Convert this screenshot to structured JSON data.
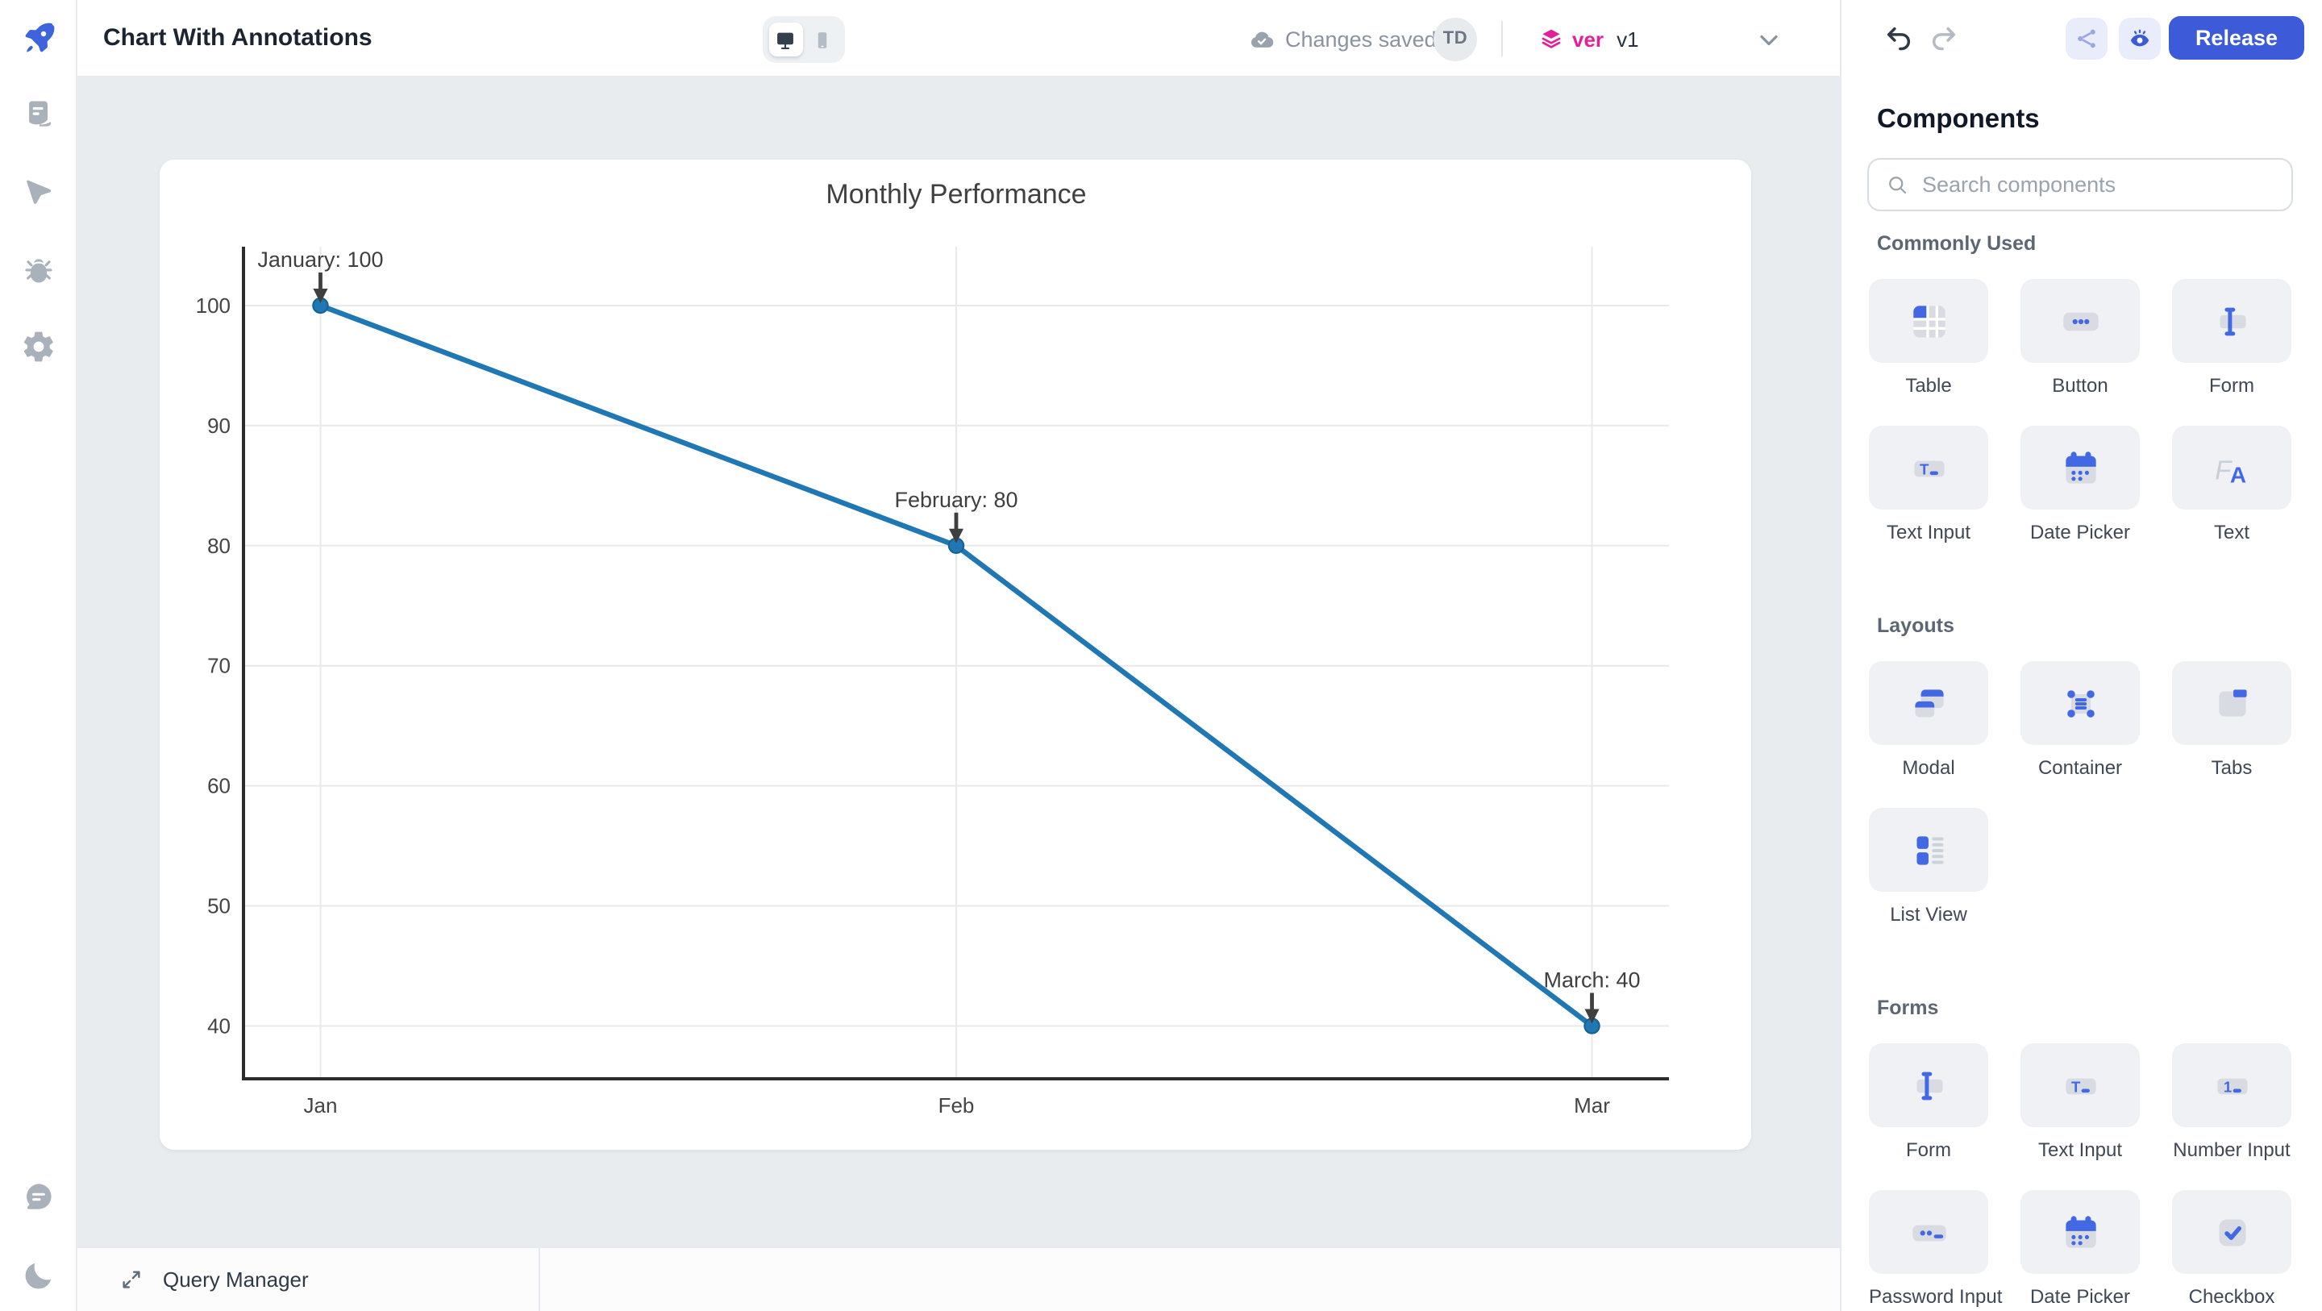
{
  "header": {
    "title": "Chart With Annotations",
    "status": "Changes saved",
    "avatar": "TD",
    "version_label": "ver",
    "version_value": "v1",
    "release_label": "Release"
  },
  "right_panel": {
    "title": "Components",
    "search_placeholder": "Search components",
    "sections": [
      {
        "title": "Commonly Used",
        "items": [
          {
            "label": "Table",
            "icon": "table"
          },
          {
            "label": "Button",
            "icon": "button"
          },
          {
            "label": "Form",
            "icon": "form"
          },
          {
            "label": "Text Input",
            "icon": "text-input"
          },
          {
            "label": "Date Picker",
            "icon": "date-picker"
          },
          {
            "label": "Text",
            "icon": "text"
          }
        ]
      },
      {
        "title": "Layouts",
        "items": [
          {
            "label": "Modal",
            "icon": "modal"
          },
          {
            "label": "Container",
            "icon": "container"
          },
          {
            "label": "Tabs",
            "icon": "tabs"
          },
          {
            "label": "List View",
            "icon": "list-view"
          }
        ]
      },
      {
        "title": "Forms",
        "items": [
          {
            "label": "Form",
            "icon": "form"
          },
          {
            "label": "Text Input",
            "icon": "text-input"
          },
          {
            "label": "Number Input",
            "icon": "number-input"
          },
          {
            "label": "Password Input",
            "icon": "password-input"
          },
          {
            "label": "Date Picker",
            "icon": "date-picker"
          },
          {
            "label": "Checkbox",
            "icon": "checkbox"
          }
        ]
      }
    ]
  },
  "bottom_bar": {
    "query_manager_label": "Query Manager"
  },
  "colors": {
    "accent": "#3d5bd8",
    "component_icon_blue": "#4368e3",
    "version_pink": "#e0219a",
    "canvas_bg": "#e9ecef",
    "chart_line": "#1f77b4"
  },
  "chart_data": {
    "type": "line",
    "title": "Monthly Performance",
    "categories": [
      "Jan",
      "Feb",
      "Mar"
    ],
    "values": [
      100,
      80,
      40
    ],
    "yticks": [
      40,
      50,
      60,
      70,
      80,
      90,
      100
    ],
    "ylim": [
      35.6,
      104.9
    ],
    "grid": true,
    "legend": "none",
    "line_color": "#1f77b4",
    "annotations": [
      {
        "text": "January: 100",
        "category": "Jan",
        "value": 100
      },
      {
        "text": "February: 80",
        "category": "Feb",
        "value": 80
      },
      {
        "text": "March: 40",
        "category": "Mar",
        "value": 40
      }
    ]
  }
}
